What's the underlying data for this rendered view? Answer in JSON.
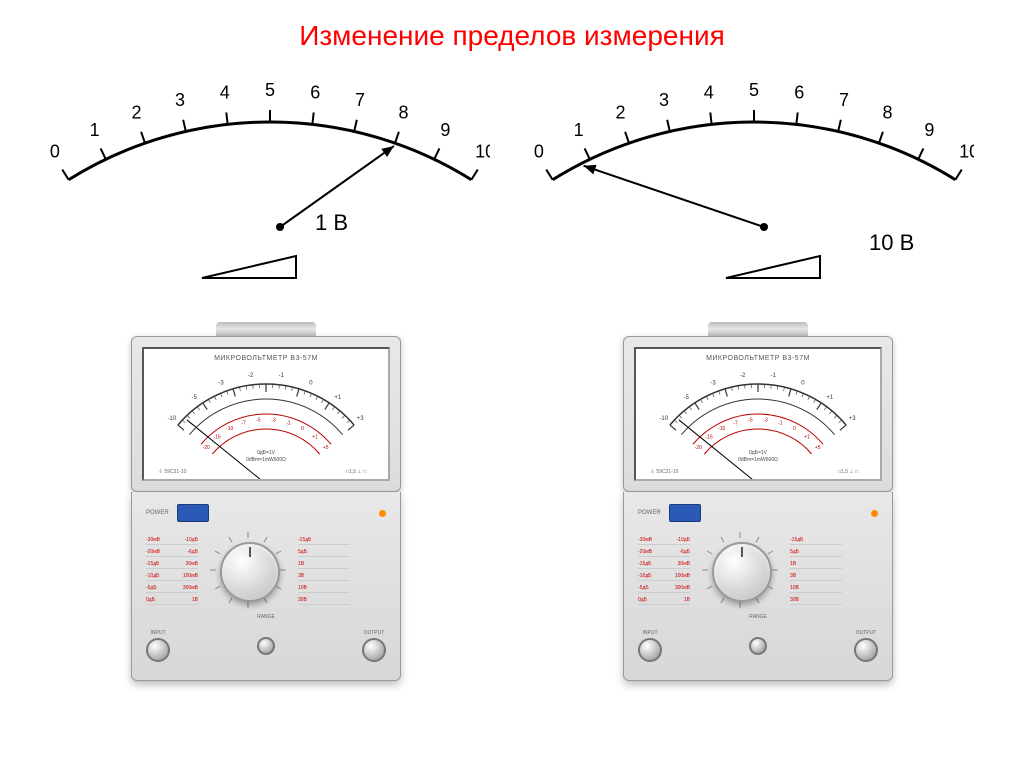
{
  "title": "Изменение пределов измерения",
  "title_color": "#ff0000",
  "scale": {
    "ticks": [
      0,
      1,
      2,
      3,
      4,
      5,
      6,
      7,
      8,
      9,
      10
    ],
    "arc_stroke": "#000000",
    "tick_color": "#000000",
    "label_fontsize": 18
  },
  "left": {
    "needle_target": 8,
    "value_label": "1 В"
  },
  "right": {
    "needle_target": 0.8,
    "value_label": "10 В"
  },
  "device": {
    "label": "МИКРОВОЛЬТМЕТР В3-57М",
    "power_label": "POWER",
    "input_label": "INPUT",
    "output_label": "OUTPUT",
    "range_label": "RANGE",
    "body_color": "#e0e0e0",
    "power_btn_color": "#2a5ab5",
    "range_text_color": "#c00000",
    "range_left": [
      {
        "a": "-30мВ",
        "b": "-10дБ"
      },
      {
        "a": "-20мВ",
        "b": "-6дБ"
      },
      {
        "a": "-15дБ",
        "b": "30мВ"
      },
      {
        "a": "-10дБ",
        "b": "100мВ"
      },
      {
        "a": "-5дБ",
        "b": "300мВ"
      },
      {
        "a": "0дБ",
        "b": "1В"
      }
    ],
    "range_right": [
      {
        "a": "-15дБ",
        "b": ""
      },
      {
        "a": "5дБ",
        "b": ""
      },
      {
        "a": "1В",
        "b": ""
      },
      {
        "a": "3В",
        "b": ""
      },
      {
        "a": "10В",
        "b": ""
      },
      {
        "a": "30В",
        "b": ""
      }
    ],
    "meter_inner": {
      "arc_labels_outer": [
        "-10",
        "-5",
        "-3",
        "-2",
        "-1",
        "0",
        "+1",
        "+3"
      ],
      "arc_labels_inner": [
        "-20",
        "-15",
        "-10",
        "-7",
        "-5",
        "-3",
        "-1",
        "0",
        "+1",
        "+5"
      ],
      "small_text": "0дБ=1V\n0dBm=1mW600Ω"
    }
  }
}
